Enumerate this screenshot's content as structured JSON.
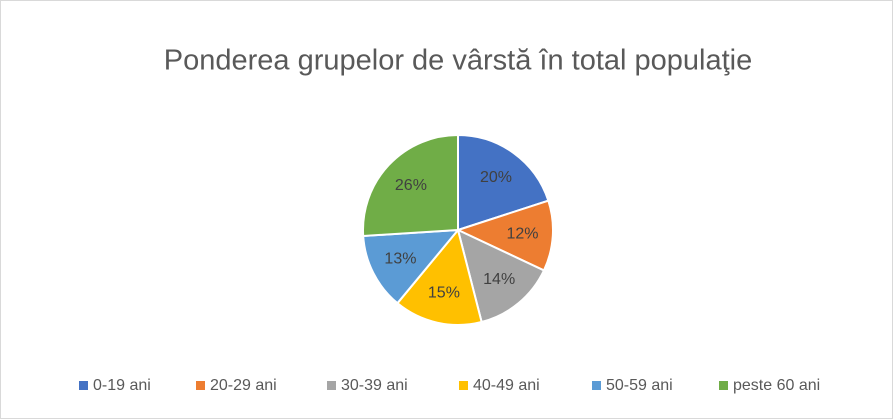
{
  "chart_data": {
    "type": "pie",
    "title": "Ponderea grupelor de vârstă în total populaţie",
    "categories": [
      "0-19 ani",
      "20-29 ani",
      "30-39 ani",
      "40-49 ani",
      "50-59 ani",
      "peste 60 ani"
    ],
    "values": [
      20,
      12,
      14,
      15,
      13,
      26
    ],
    "value_labels": [
      "20%",
      "12%",
      "14%",
      "15%",
      "13%",
      "26%"
    ],
    "colors": [
      "#4472c4",
      "#ed7d31",
      "#a5a5a5",
      "#ffc000",
      "#5b9bd5",
      "#70ad47"
    ],
    "legend": "bottom"
  }
}
